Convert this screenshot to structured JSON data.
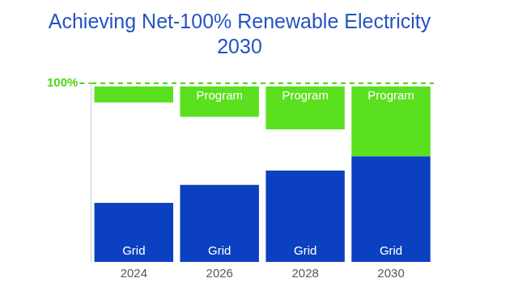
{
  "chart_data": {
    "type": "bar",
    "title": [
      "Achieving Net-100% Renewable Electricity",
      "2030"
    ],
    "categories": [
      "2024",
      "2026",
      "2028",
      "2030"
    ],
    "series": [
      {
        "name": "Grid",
        "color": "#0b40c0",
        "values": [
          33,
          43,
          51,
          59
        ]
      },
      {
        "name": "Program",
        "color": "#5ae01e",
        "values": [
          [
            89,
            98
          ],
          [
            81,
            98
          ],
          [
            74,
            98
          ],
          [
            59,
            98
          ]
        ]
      }
    ],
    "ylim": [
      0,
      100
    ],
    "yticks": [
      {
        "value": 100,
        "label": "100%"
      }
    ],
    "grid": true
  }
}
